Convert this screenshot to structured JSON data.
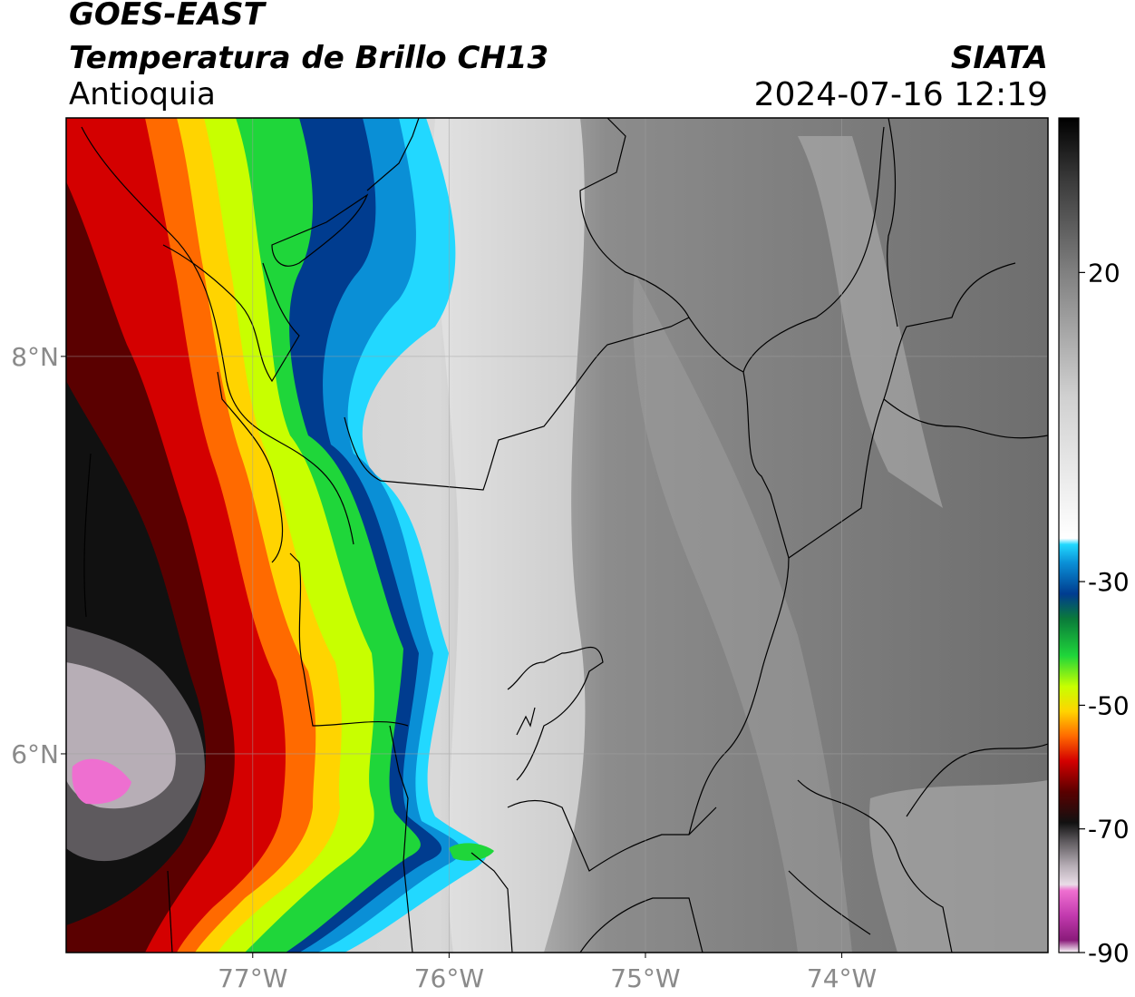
{
  "header": {
    "satellite": "GOES-EAST",
    "product": "Temperatura de Brillo CH13",
    "region": "Antioquia",
    "organization": "SIATA",
    "timestamp": "2024-07-16 12:19"
  },
  "map": {
    "lon_range": [
      -77.95,
      -72.95
    ],
    "lat_range": [
      5.0,
      9.2
    ],
    "lon_ticks": [
      {
        "value": -77,
        "label": "77°W"
      },
      {
        "value": -76,
        "label": "76°W"
      },
      {
        "value": -75,
        "label": "75°W"
      },
      {
        "value": -74,
        "label": "74°W"
      }
    ],
    "lat_ticks": [
      {
        "value": 8,
        "label": "8°N"
      },
      {
        "value": 6,
        "label": "6°N"
      }
    ]
  },
  "colorbar": {
    "range": [
      -90,
      45
    ],
    "ticks": [
      {
        "value": 20,
        "label": "20"
      },
      {
        "value": -30,
        "label": "-30"
      },
      {
        "value": -50,
        "label": "-50"
      },
      {
        "value": -70,
        "label": "-70"
      },
      {
        "value": -90,
        "label": "-90"
      }
    ],
    "stops": [
      {
        "value": -90,
        "color": "#ffffff"
      },
      {
        "value": -88,
        "color": "#8a1b7a"
      },
      {
        "value": -84,
        "color": "#c23aae"
      },
      {
        "value": -80,
        "color": "#ee6fd0"
      },
      {
        "value": -79,
        "color": "#e9dce7"
      },
      {
        "value": -76,
        "color": "#b7aeb6"
      },
      {
        "value": -72,
        "color": "#5e5a5e"
      },
      {
        "value": -69,
        "color": "#111111"
      },
      {
        "value": -64,
        "color": "#5a0000"
      },
      {
        "value": -59,
        "color": "#d40000"
      },
      {
        "value": -55,
        "color": "#ff6a00"
      },
      {
        "value": -51,
        "color": "#ffd400"
      },
      {
        "value": -47,
        "color": "#c8ff00"
      },
      {
        "value": -42,
        "color": "#1fd63a"
      },
      {
        "value": -36,
        "color": "#0a7a3a"
      },
      {
        "value": -32,
        "color": "#003c8f"
      },
      {
        "value": -27,
        "color": "#0a8fd6"
      },
      {
        "value": -24,
        "color": "#22d8ff"
      },
      {
        "value": -23,
        "color": "#ffffff"
      },
      {
        "value": 0,
        "color": "#d0d0d0"
      },
      {
        "value": 20,
        "color": "#808080"
      },
      {
        "value": 35,
        "color": "#3a3a3a"
      },
      {
        "value": 45,
        "color": "#000000"
      }
    ]
  }
}
